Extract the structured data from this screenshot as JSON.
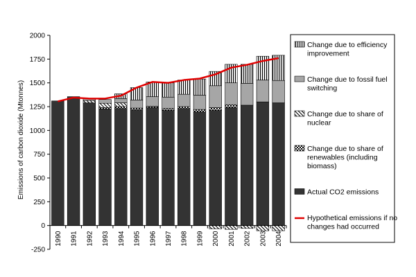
{
  "chart_data": {
    "type": "bar",
    "stacked": true,
    "ylabel": "Emissions of carbon dioxide (Mtonnes)",
    "ylim": [
      -250,
      2000
    ],
    "yticks": [
      -250,
      0,
      250,
      500,
      750,
      1000,
      1250,
      1500,
      1750,
      2000
    ],
    "grid": false,
    "legend_position": "right",
    "categories": [
      "1990",
      "1991",
      "1992",
      "1993",
      "1994",
      "1995",
      "1996",
      "1997",
      "1998",
      "1999",
      "2000",
      "2001",
      "2002",
      "2003",
      "2004"
    ],
    "series": [
      {
        "name": "Actual CO2 emissions",
        "pattern": "solid-dark",
        "values": [
          1310,
          1355,
          1290,
          1225,
          1230,
          1215,
          1240,
          1210,
          1230,
          1195,
          1210,
          1240,
          1265,
          1300,
          1290
        ]
      },
      {
        "name": "Change due to share of renewables (including biomass)",
        "pattern": "checker",
        "values": [
          0,
          0,
          0,
          15,
          20,
          20,
          15,
          20,
          20,
          25,
          30,
          30,
          0,
          0,
          0
        ]
      },
      {
        "name": "Change due to share of nuclear",
        "pattern": "diagonal",
        "values": [
          0,
          0,
          25,
          45,
          40,
          0,
          0,
          0,
          0,
          0,
          0,
          0,
          0,
          0,
          0
        ]
      },
      {
        "name": "Change due to fossil fuel switching",
        "pattern": "solid-gray",
        "values": [
          0,
          0,
          20,
          40,
          45,
          85,
          100,
          120,
          130,
          150,
          230,
          230,
          230,
          230,
          235
        ]
      },
      {
        "name": "Change due to efficiency improvement",
        "pattern": "vertical",
        "values": [
          0,
          0,
          0,
          0,
          50,
          130,
          155,
          150,
          150,
          170,
          150,
          195,
          200,
          250,
          265
        ]
      },
      {
        "name": "Change due to share of nuclear (negative)",
        "pattern": "diagonal",
        "legend": false,
        "values": [
          0,
          0,
          0,
          0,
          0,
          0,
          0,
          0,
          0,
          0,
          -35,
          -40,
          -30,
          -55,
          -55
        ]
      }
    ],
    "line": {
      "name": "Hypothetical emissions if no changes had occurred",
      "color": "#e00000",
      "values": [
        1305,
        1345,
        1335,
        1335,
        1365,
        1450,
        1510,
        1500,
        1530,
        1545,
        1590,
        1660,
        1690,
        1730,
        1760
      ]
    },
    "legend": [
      {
        "label": "Change due to efficiency improvement",
        "pattern": "vertical"
      },
      {
        "label": "Change due to fossil fuel switching",
        "pattern": "solid-gray"
      },
      {
        "label": "Change due to share of nuclear",
        "pattern": "diagonal"
      },
      {
        "label": "Change due to share of renewables (including biomass)",
        "pattern": "checker"
      },
      {
        "label": "Actual CO2 emissions",
        "pattern": "solid-dark"
      },
      {
        "label": "Hypothetical emissions if no changes had occurred",
        "pattern": "line"
      }
    ]
  }
}
